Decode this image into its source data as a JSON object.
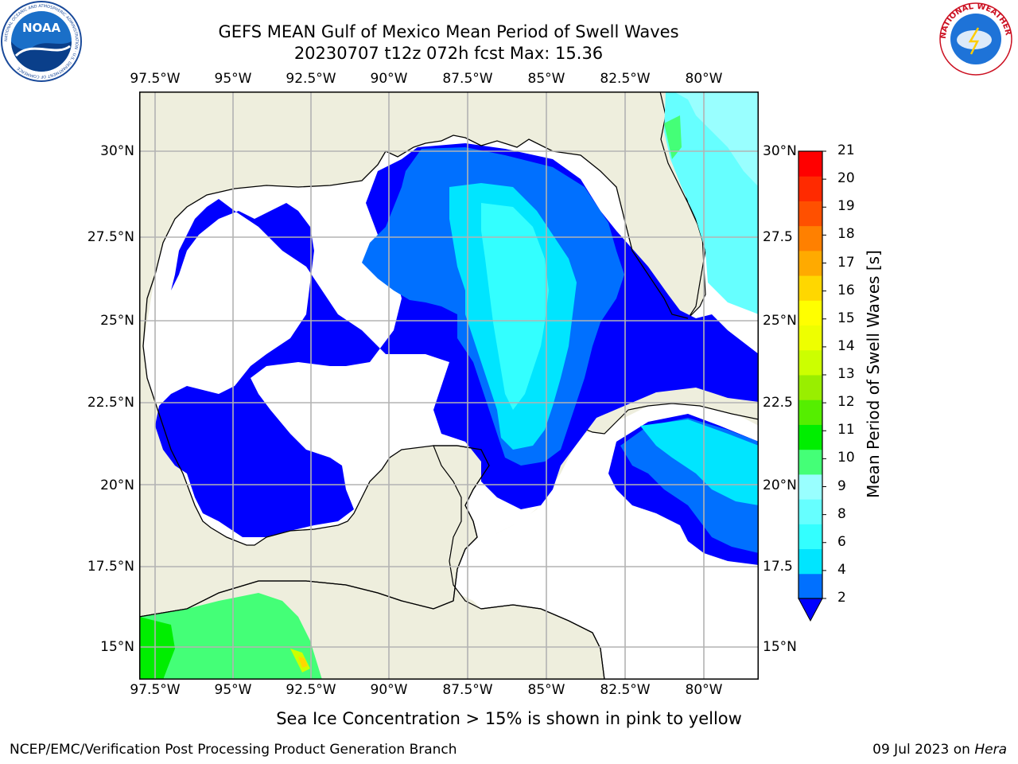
{
  "header": {
    "title_line1": "GEFS MEAN Gulf of Mexico Mean Period of Swell Waves",
    "title_line2": "20230707 t12z 072h fcst   Max: 15.36"
  },
  "logos": {
    "noaa_text": "NOAA",
    "noaa_ring": "NATIONAL OCEANIC AND ATMOSPHERIC ADMINISTRATION · U.S. DEPARTMENT OF COMMERCE",
    "nws_ring": "NATIONAL WEATHER SERVICE"
  },
  "map": {
    "lon_labels": [
      "97.5°W",
      "95°W",
      "92.5°W",
      "90°W",
      "87.5°W",
      "85°W",
      "82.5°W",
      "80°W"
    ],
    "lat_labels_left": [
      "30°N",
      "27.5°N",
      "25°N",
      "22.5°N",
      "20°N",
      "17.5°N",
      "15°N"
    ],
    "lat_labels_right": [
      "30°N",
      "27.5",
      "25°N",
      "22.5",
      "20°N",
      "17.5",
      "15°N"
    ],
    "colors": {
      "land": "#eeeedd",
      "grid": "#b3b3b3",
      "coast": "#000000"
    }
  },
  "colorbar": {
    "label": "Mean Period of Swell Waves [s]",
    "ticks": [
      "21",
      "20",
      "19",
      "18",
      "17",
      "16",
      "15",
      "14",
      "13",
      "12",
      "11",
      "10",
      "9",
      "8",
      "6",
      "4",
      "2"
    ],
    "colors_bottom_to_top": [
      "#0070ff",
      "#00e5ff",
      "#33ffff",
      "#66ffff",
      "#99ffff",
      "#44ff77",
      "#00ee00",
      "#55ee00",
      "#99ee00",
      "#ccff00",
      "#eeff00",
      "#ffff00",
      "#ffd700",
      "#ffaa00",
      "#ff8000",
      "#ff5000",
      "#ff2a00",
      "#ff0000"
    ],
    "under_color": "#0000ff"
  },
  "footer": {
    "note": "Sea Ice Concentration > 15% is shown in pink to yellow",
    "left": "NCEP/EMC/Verification Post Processing Product Generation Branch",
    "date": "09 Jul 2023 on ",
    "machine": "Hera"
  }
}
